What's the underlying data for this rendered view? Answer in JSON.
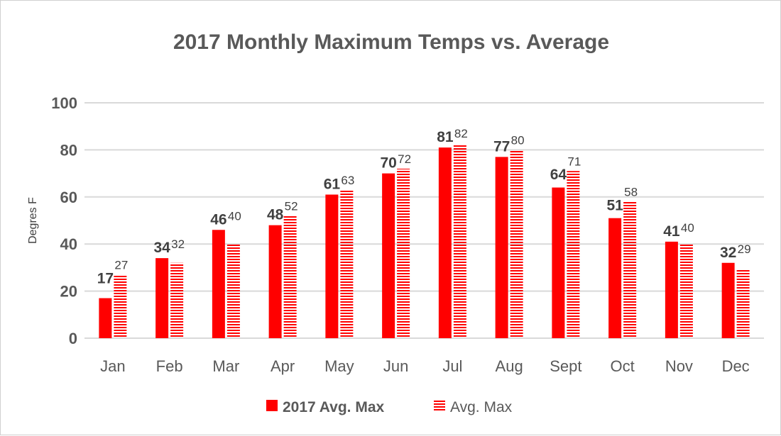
{
  "chart_data": {
    "type": "bar",
    "title": "2017 Monthly Maximum Temps vs. Average",
    "xlabel": "",
    "ylabel": "Degres F",
    "ylim": [
      0,
      100
    ],
    "yticks": [
      0,
      20,
      40,
      60,
      80,
      100
    ],
    "grid": true,
    "legend_position": "bottom",
    "categories": [
      "Jan",
      "Feb",
      "Mar",
      "Apr",
      "May",
      "Jun",
      "Jul",
      "Aug",
      "Sept",
      "Oct",
      "Nov",
      "Dec"
    ],
    "series": [
      {
        "name": "2017 Avg. Max",
        "color": "#ff0000",
        "pattern": "solid",
        "values": [
          17,
          34,
          46,
          48,
          61,
          70,
          81,
          77,
          64,
          51,
          41,
          32
        ]
      },
      {
        "name": "Avg. Max",
        "color": "#ff0000",
        "pattern": "horizontal-stripes",
        "values": [
          27,
          32,
          40,
          52,
          63,
          72,
          82,
          80,
          71,
          58,
          40,
          29
        ]
      }
    ]
  }
}
